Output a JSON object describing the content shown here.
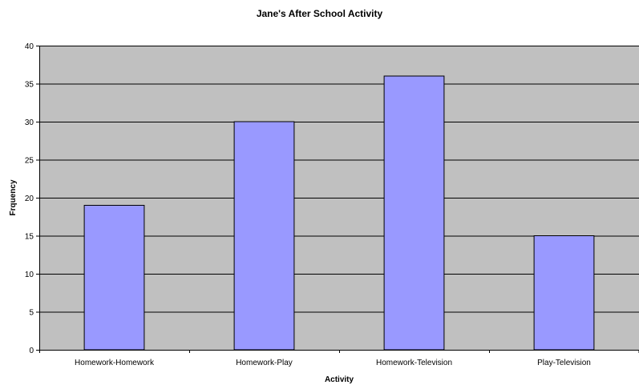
{
  "chart_data": {
    "type": "bar",
    "title": "Jane's After School Activity",
    "xlabel": "Activity",
    "ylabel": "Frquency",
    "categories": [
      "Homework-Homework",
      "Homework-Play",
      "Homework-Television",
      "Play-Television"
    ],
    "values": [
      19,
      30,
      36,
      15
    ],
    "ylim": [
      0,
      40
    ],
    "yticks": [
      0,
      5,
      10,
      15,
      20,
      25,
      30,
      35,
      40
    ],
    "grid": true,
    "legend": "none",
    "colors": {
      "plot_background": "#c0c0c0",
      "bar_fill": "#9999ff",
      "bar_stroke": "#000000",
      "gridline": "#000000"
    }
  }
}
